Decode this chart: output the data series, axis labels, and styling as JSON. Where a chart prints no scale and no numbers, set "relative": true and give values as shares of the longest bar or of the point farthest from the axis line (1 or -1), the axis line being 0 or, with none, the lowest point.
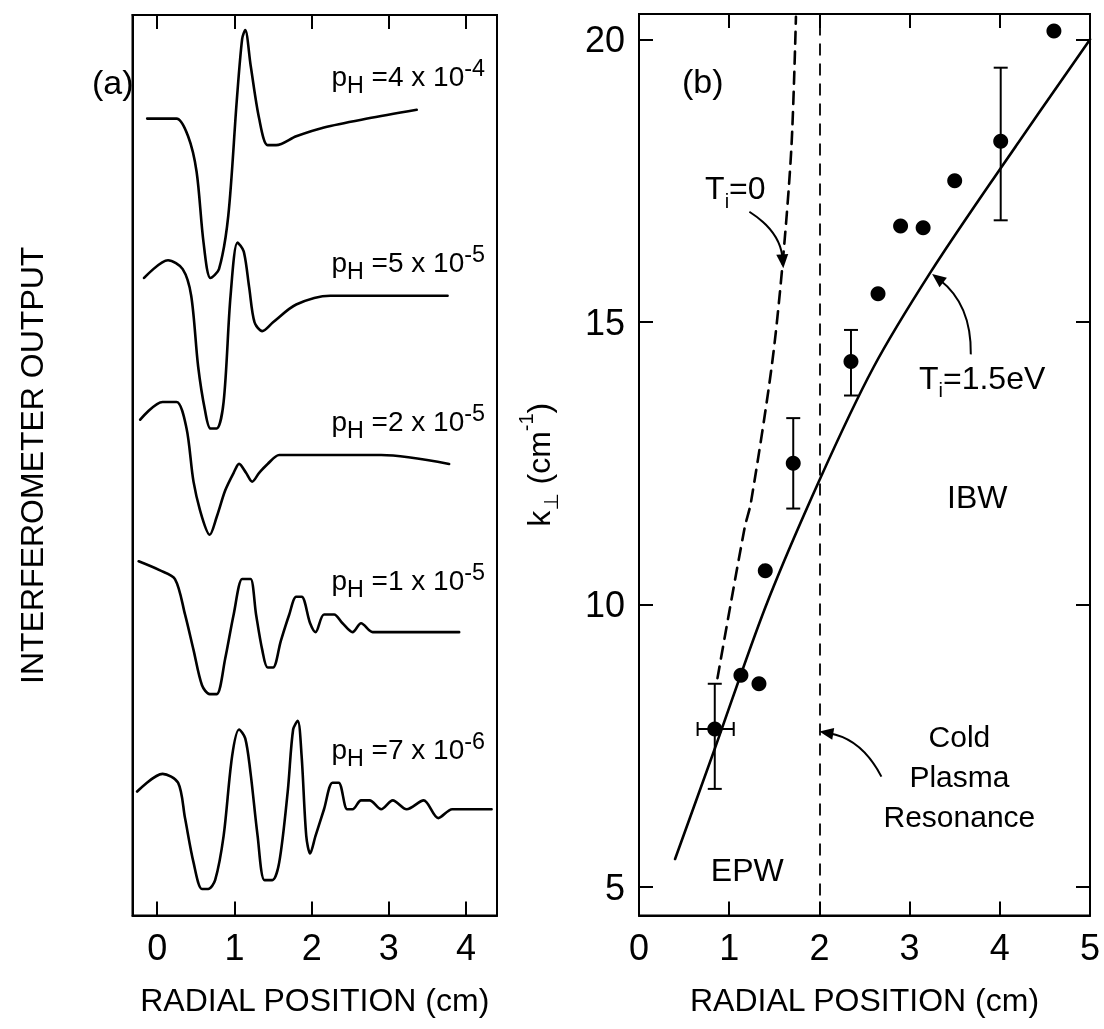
{
  "chart_data": [
    {
      "type": "line",
      "title": "(a)",
      "xlabel": "RADIAL POSITION (cm)",
      "ylabel": "INTERFEROMETER OUTPUT",
      "relative": true,
      "xlim": [
        -0.32,
        4.4
      ],
      "xticks": [
        0,
        1,
        2,
        3,
        4
      ],
      "tick_labels": "x",
      "grid": false,
      "marker": "none",
      "line_style": "solid",
      "series": [
        {
          "name": "p$_{H}$ =4 x 10$^{-4}$",
          "color": "#000000",
          "x": [
            -0.13,
            0.25,
            0.4,
            0.51,
            0.6,
            0.69,
            0.8,
            0.92,
            1.03,
            1.1,
            1.14,
            1.21,
            1.32,
            1.43,
            1.54,
            1.8,
            2.16,
            2.72,
            3.36
          ],
          "values": [
            0.9,
            0.9,
            0.88,
            0.84,
            0.76,
            0.72,
            0.73,
            0.79,
            0.92,
            0.99,
            1.0,
            0.96,
            0.9,
            0.87,
            0.87,
            0.88,
            0.89,
            0.9,
            0.91
          ]
        },
        {
          "name": "p$_{H}$ =5 x 10$^{-5}$",
          "color": "#000000",
          "x": [
            -0.17,
            0.14,
            0.33,
            0.44,
            0.53,
            0.62,
            0.69,
            0.77,
            0.86,
            0.95,
            1.04,
            1.12,
            1.19,
            1.26,
            1.36,
            1.5,
            1.8,
            2.24,
            2.9,
            3.76
          ],
          "values": [
            0.72,
            0.74,
            0.73,
            0.7,
            0.62,
            0.57,
            0.55,
            0.55,
            0.58,
            0.7,
            0.76,
            0.75,
            0.71,
            0.67,
            0.66,
            0.67,
            0.69,
            0.7,
            0.7,
            0.7
          ]
        },
        {
          "name": "p$_{H}$ =2 x 10$^{-5}$",
          "color": "#000000",
          "x": [
            -0.22,
            0.07,
            0.25,
            0.38,
            0.47,
            0.58,
            0.68,
            0.77,
            0.88,
            0.99,
            1.06,
            1.15,
            1.23,
            1.32,
            1.43,
            1.58,
            1.72,
            1.83,
            1.94,
            2.09,
            2.35,
            2.9,
            3.78
          ],
          "values": [
            0.56,
            0.58,
            0.58,
            0.55,
            0.49,
            0.45,
            0.43,
            0.45,
            0.48,
            0.5,
            0.51,
            0.5,
            0.49,
            0.5,
            0.51,
            0.52,
            0.52,
            0.52,
            0.52,
            0.52,
            0.52,
            0.52,
            0.51
          ]
        },
        {
          "name": "p$_{H}$ =1 x 10$^{-5}$",
          "color": "#000000",
          "x": [
            -0.24,
            0.03,
            0.23,
            0.36,
            0.47,
            0.58,
            0.68,
            0.77,
            0.88,
            0.99,
            1.1,
            1.15,
            1.21,
            1.28,
            1.36,
            1.43,
            1.5,
            1.6,
            1.71,
            1.8,
            1.87,
            1.98,
            2.05,
            2.16,
            2.29,
            2.4,
            2.53,
            2.64,
            2.79,
            2.97,
            3.08,
            3.23,
            3.38,
            3.56,
            3.78,
            3.91
          ],
          "values": [
            0.4,
            0.39,
            0.38,
            0.34,
            0.3,
            0.26,
            0.25,
            0.25,
            0.29,
            0.34,
            0.38,
            0.38,
            0.38,
            0.34,
            0.3,
            0.28,
            0.28,
            0.31,
            0.34,
            0.36,
            0.36,
            0.33,
            0.32,
            0.34,
            0.34,
            0.33,
            0.32,
            0.33,
            0.32,
            0.32,
            0.32,
            0.32,
            0.32,
            0.32,
            0.32,
            0.32
          ]
        },
        {
          "name": "p$_{H}$ =7 x 10$^{-6}$",
          "color": "#000000",
          "x": [
            -0.26,
            0.07,
            0.27,
            0.36,
            0.47,
            0.58,
            0.66,
            0.75,
            0.86,
            0.97,
            1.06,
            1.14,
            1.21,
            1.3,
            1.39,
            1.49,
            1.58,
            1.69,
            1.76,
            1.82,
            1.87,
            1.93,
            1.98,
            2.05,
            2.16,
            2.27,
            2.35,
            2.46,
            2.53,
            2.64,
            2.75,
            2.9,
            3.05,
            3.23,
            3.45,
            3.64,
            3.82,
            4.08,
            4.33
          ],
          "values": [
            0.14,
            0.16,
            0.15,
            0.11,
            0.06,
            0.03,
            0.03,
            0.04,
            0.09,
            0.18,
            0.21,
            0.2,
            0.16,
            0.09,
            0.04,
            0.04,
            0.06,
            0.14,
            0.21,
            0.22,
            0.18,
            0.09,
            0.07,
            0.09,
            0.12,
            0.15,
            0.15,
            0.12,
            0.12,
            0.13,
            0.13,
            0.12,
            0.13,
            0.12,
            0.13,
            0.11,
            0.12,
            0.12,
            0.12
          ]
        }
      ]
    },
    {
      "type": "scatter",
      "title": "(b)",
      "xlabel": "RADIAL POSITION (cm)",
      "ylabel": "k$_{⊥}$ (cm$^{-1}$)",
      "xlim": [
        0,
        5
      ],
      "xticks": [
        0,
        1,
        2,
        3,
        4,
        5
      ],
      "ylim": [
        4.5,
        20.45
      ],
      "yticks": [
        5,
        10,
        15,
        20
      ],
      "grid": false,
      "series": [
        {
          "marker": "circle",
          "color": "#000000",
          "x": [
            0.84,
            1.13,
            1.33,
            1.4,
            1.71,
            2.35,
            2.65,
            2.9,
            3.15,
            3.5,
            4.01,
            4.6
          ],
          "values": [
            7.8,
            8.75,
            8.6,
            10.6,
            12.5,
            14.3,
            15.5,
            16.7,
            16.67,
            17.5,
            18.2,
            20.15
          ],
          "errors": [
            [
              6.74,
              8.6
            ],
            null,
            null,
            null,
            [
              11.7,
              13.3
            ],
            [
              13.7,
              14.86
            ],
            null,
            null,
            null,
            null,
            [
              16.8,
              19.5
            ],
            null
          ],
          "xerrors": [
            [
              0.65,
              1.05
            ],
            null,
            null,
            null,
            null,
            null,
            null,
            null,
            null,
            null,
            null,
            null
          ]
        },
        {
          "type": "line",
          "marker": "none",
          "line_style": "solid",
          "color": "#000000",
          "x": [
            0.4,
            0.84,
            1.4,
            2.0,
            2.6,
            3.24,
            4.0,
            5.0
          ],
          "values": [
            5.5,
            7.45,
            9.95,
            12.2,
            14.2,
            15.9,
            17.7,
            20.0
          ]
        },
        {
          "type": "line",
          "marker": "none",
          "line_style": "dashed",
          "color": "#000000",
          "x": [
            0.87,
            1.17,
            1.24,
            1.47,
            1.59,
            1.69,
            1.74
          ],
          "values": [
            8.7,
            11.35,
            11.8,
            14.2,
            16.0,
            18.1,
            20.4
          ]
        }
      ],
      "ref_lines": [
        {
          "axis": "x",
          "value": 2,
          "label": "Cold Plasma Resonance",
          "line_style": "dashed",
          "color": "#000000"
        }
      ],
      "annotations": [
        {
          "text": "T$_{i}$=0",
          "x": 1.6,
          "y": 15.95
        },
        {
          "text": "T$_{i}$=1.5eV",
          "x": 3.25,
          "y": 15.85
        },
        "IBW",
        "EPW"
      ]
    }
  ]
}
